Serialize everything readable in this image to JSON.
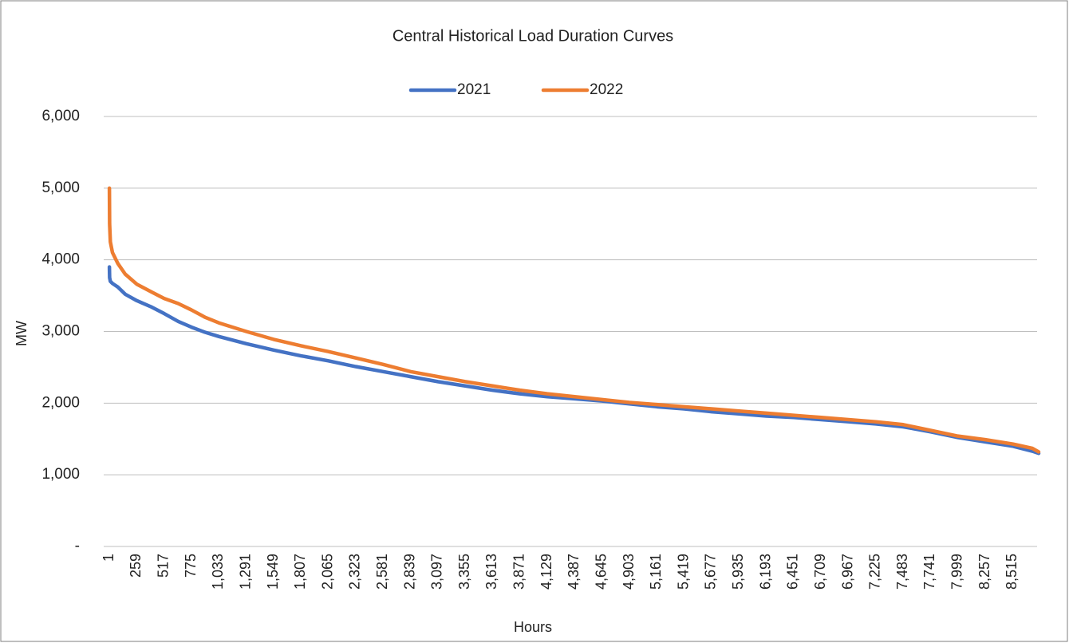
{
  "chart_data": {
    "type": "line",
    "title": "Central Historical Load Duration Curves",
    "x_label": "Hours",
    "y_label": "MW",
    "x": [
      1,
      3,
      10,
      30,
      80,
      150,
      259,
      400,
      517,
      650,
      775,
      900,
      1033,
      1291,
      1549,
      1807,
      2065,
      2323,
      2581,
      2839,
      3097,
      3355,
      3613,
      3871,
      4129,
      4387,
      4645,
      4903,
      5161,
      5419,
      5677,
      5935,
      6193,
      6451,
      6709,
      6967,
      7225,
      7483,
      7741,
      7999,
      8257,
      8515,
      8700,
      8760
    ],
    "series": [
      {
        "name": "2021",
        "color": "#4472c4",
        "values": [
          3900,
          3750,
          3700,
          3670,
          3620,
          3520,
          3430,
          3340,
          3250,
          3140,
          3060,
          2990,
          2930,
          2830,
          2740,
          2660,
          2590,
          2510,
          2440,
          2370,
          2300,
          2240,
          2180,
          2130,
          2090,
          2060,
          2030,
          1990,
          1950,
          1920,
          1880,
          1850,
          1820,
          1800,
          1770,
          1740,
          1710,
          1670,
          1600,
          1520,
          1460,
          1400,
          1330,
          1300
        ]
      },
      {
        "name": "2022",
        "color": "#ed7d31",
        "values": [
          5000,
          4500,
          4250,
          4100,
          3950,
          3800,
          3660,
          3550,
          3460,
          3390,
          3300,
          3200,
          3120,
          3000,
          2890,
          2800,
          2720,
          2630,
          2540,
          2440,
          2370,
          2300,
          2240,
          2180,
          2130,
          2090,
          2050,
          2010,
          1980,
          1950,
          1920,
          1890,
          1860,
          1830,
          1800,
          1770,
          1740,
          1700,
          1620,
          1540,
          1490,
          1430,
          1370,
          1320
        ]
      }
    ],
    "xlim": [
      0,
      8760
    ],
    "xticks": [
      1,
      259,
      517,
      775,
      {
        "value": 1033,
        "label": "1,033"
      },
      {
        "value": 1291,
        "label": "1,291"
      },
      {
        "value": 1549,
        "label": "1,549"
      },
      {
        "value": 1807,
        "label": "1,807"
      },
      {
        "value": 2065,
        "label": "2,065"
      },
      {
        "value": 2323,
        "label": "2,323"
      },
      {
        "value": 2581,
        "label": "2,581"
      },
      {
        "value": 2839,
        "label": "2,839"
      },
      {
        "value": 3097,
        "label": "3,097"
      },
      {
        "value": 3355,
        "label": "3,355"
      },
      {
        "value": 3613,
        "label": "3,613"
      },
      {
        "value": 3871,
        "label": "3,871"
      },
      {
        "value": 4129,
        "label": "4,129"
      },
      {
        "value": 4387,
        "label": "4,387"
      },
      {
        "value": 4645,
        "label": "4,645"
      },
      {
        "value": 4903,
        "label": "4,903"
      },
      {
        "value": 5161,
        "label": "5,161"
      },
      {
        "value": 5419,
        "label": "5,419"
      },
      {
        "value": 5677,
        "label": "5,677"
      },
      {
        "value": 5935,
        "label": "5,935"
      },
      {
        "value": 6193,
        "label": "6,193"
      },
      {
        "value": 6451,
        "label": "6,451"
      },
      {
        "value": 6709,
        "label": "6,709"
      },
      {
        "value": 6967,
        "label": "6,967"
      },
      {
        "value": 7225,
        "label": "7,225"
      },
      {
        "value": 7483,
        "label": "7,483"
      },
      {
        "value": 7741,
        "label": "7,741"
      },
      {
        "value": 7999,
        "label": "7,999"
      },
      {
        "value": 8257,
        "label": "8,257"
      },
      {
        "value": 8515,
        "label": "8,515"
      }
    ],
    "ylim": [
      0,
      6000
    ],
    "yticks": [
      {
        "value": 0,
        "label": "-"
      },
      {
        "value": 1000,
        "label": "1,000"
      },
      {
        "value": 2000,
        "label": "2,000"
      },
      {
        "value": 3000,
        "label": "3,000"
      },
      {
        "value": 4000,
        "label": "4,000"
      },
      {
        "value": 5000,
        "label": "5,000"
      },
      {
        "value": 6000,
        "label": "6,000"
      }
    ],
    "grid": true,
    "legend": "top"
  }
}
